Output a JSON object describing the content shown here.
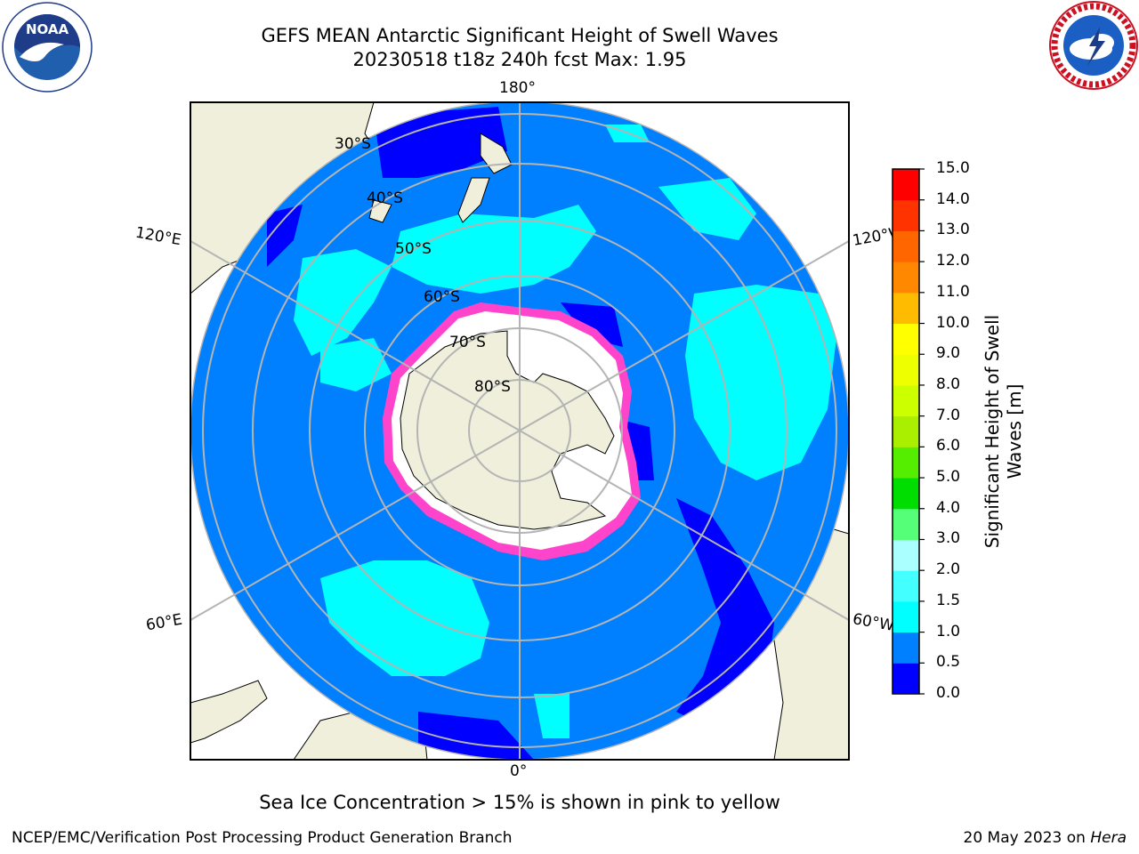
{
  "header": {
    "title_line1": "GEFS MEAN Antarctic Significant Height of Swell Waves",
    "title_line2": "20230518 t18z 240h fcst   Max: 1.95"
  },
  "map": {
    "projection": "south-polar-stereographic",
    "longitude_labels": {
      "top": "180°",
      "bottom": "0°",
      "left_upper": "120°E",
      "left_lower": "60°E",
      "right_upper": "120°W",
      "right_lower": "60°W"
    },
    "latitude_labels": [
      "30°S",
      "40°S",
      "50°S",
      "60°S",
      "70°S",
      "80°S"
    ],
    "colors": {
      "ocean_base": "#0080ff",
      "ocean_low": "#0000ff",
      "swell_1_1_5": "#00ffff",
      "land": "#efefdc",
      "ice": "#ffffff",
      "ice_edge": "#ff44cc",
      "grid": "#b4b4b4"
    },
    "ice_caption": "Sea Ice Concentration > 15% is shown in pink to yellow"
  },
  "colorbar": {
    "label": "Significant Height of Swell Waves [m]",
    "ticks": [
      "0.0",
      "0.5",
      "1.0",
      "1.5",
      "2.0",
      "3.0",
      "4.0",
      "5.0",
      "6.0",
      "7.0",
      "8.0",
      "9.0",
      "10.0",
      "11.0",
      "12.0",
      "13.0",
      "14.0",
      "15.0"
    ],
    "colors": [
      "#0000ff",
      "#0080ff",
      "#00ffff",
      "#44ffff",
      "#aaffff",
      "#55ff77",
      "#00dd00",
      "#55ee00",
      "#aaee00",
      "#ccff00",
      "#eeff00",
      "#ffff00",
      "#ffbb00",
      "#ff8800",
      "#ff6600",
      "#ff3300",
      "#ff0000"
    ]
  },
  "logos": {
    "left": "NOAA",
    "right": "NATIONAL WEATHER SERVICE"
  },
  "footer": {
    "left": "NCEP/EMC/Verification Post Processing Product Generation Branch",
    "right_date": "20 May 2023 on",
    "right_host": "Hera"
  }
}
